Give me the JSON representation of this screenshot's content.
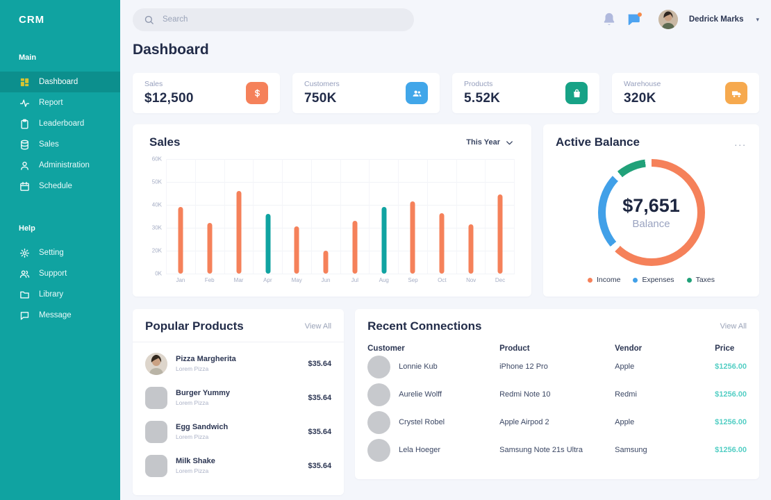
{
  "brand": "CRM",
  "topbar": {
    "search_placeholder": "Search",
    "user_name": "Dedrick Marks",
    "icons": [
      "bell-icon",
      "chat-badge-icon"
    ]
  },
  "sidebar": {
    "sections": [
      {
        "title": "Main",
        "items": [
          {
            "label": "Dashboard",
            "icon": "grid-icon",
            "active": true
          },
          {
            "label": "Report",
            "icon": "activity-icon",
            "active": false
          },
          {
            "label": "Leaderboard",
            "icon": "clipboard-icon",
            "active": false
          },
          {
            "label": "Sales",
            "icon": "database-icon",
            "active": false
          },
          {
            "label": "Administration",
            "icon": "user-icon",
            "active": false
          },
          {
            "label": "Schedule",
            "icon": "calendar-icon",
            "active": false
          }
        ]
      },
      {
        "title": "Help",
        "items": [
          {
            "label": "Setting",
            "icon": "gear-icon",
            "active": false
          },
          {
            "label": "Support",
            "icon": "users-icon",
            "active": false
          },
          {
            "label": "Library",
            "icon": "folder-icon",
            "active": false
          },
          {
            "label": "Message",
            "icon": "chat-icon",
            "active": false
          }
        ]
      }
    ]
  },
  "page_title": "Dashboard",
  "stat_cards": [
    {
      "label": "Sales",
      "value": "$12,500",
      "icon": "dollar-icon",
      "color": "#f5815a"
    },
    {
      "label": "Customers",
      "value": "750K",
      "icon": "people-icon",
      "color": "#41a6e9"
    },
    {
      "label": "Products",
      "value": "5.52K",
      "icon": "bag-icon",
      "color": "#17a286"
    },
    {
      "label": "Warehouse",
      "value": "320K",
      "icon": "truck-icon",
      "color": "#f6a94e"
    }
  ],
  "panels": {
    "sales": {
      "title": "Sales",
      "range_label": "This Year"
    },
    "balance": {
      "title": "Active Balance",
      "menu": "...",
      "center_value": "$7,651",
      "center_label": "Balance"
    },
    "products": {
      "title": "Popular Products",
      "view_all": "View All",
      "items": [
        {
          "name": "Pizza Margherita",
          "subtitle": "Lorem Pizza",
          "price": "$35.64",
          "thumb": "photo"
        },
        {
          "name": "Burger Yummy",
          "subtitle": "Lorem Pizza",
          "price": "$35.64",
          "thumb": "square"
        },
        {
          "name": "Egg Sandwich",
          "subtitle": "Lorem Pizza",
          "price": "$35.64",
          "thumb": "square"
        },
        {
          "name": "Milk Shake",
          "subtitle": "Lorem Pizza",
          "price": "$35.64",
          "thumb": "square"
        }
      ]
    },
    "connections": {
      "title": "Recent Connections",
      "view_all": "View All",
      "columns": [
        "Customer",
        "Product",
        "Vendor",
        "Price"
      ],
      "rows": [
        {
          "customer": "Lonnie Kub",
          "product": "iPhone 12 Pro",
          "vendor": "Apple",
          "price": "$1256.00"
        },
        {
          "customer": "Aurelie Wolff",
          "product": "Redmi Note 10",
          "vendor": "Redmi",
          "price": "$1256.00"
        },
        {
          "customer": "Crystel Robel",
          "product": "Apple Airpod 2",
          "vendor": "Apple",
          "price": "$1256.00"
        },
        {
          "customer": "Lela Hoeger",
          "product": "Samsung Note 21s Ultra",
          "vendor": "Samsung",
          "price": "$1256.00"
        }
      ],
      "price_color": "#53cec4"
    }
  },
  "chart_data": [
    {
      "type": "bar",
      "title": "Sales",
      "range": "This Year",
      "categories": [
        "Jan",
        "Feb",
        "Mar",
        "Apr",
        "May",
        "Jun",
        "Jul",
        "Aug",
        "Sep",
        "Oct",
        "Nov",
        "Dec"
      ],
      "values_k": [
        39,
        32,
        46,
        36,
        30.5,
        20,
        33,
        39,
        41.5,
        36.5,
        31.5,
        44.5
      ],
      "unit": "K",
      "y_ticks": [
        "60K",
        "50K",
        "40K",
        "30K",
        "20K",
        "0K"
      ],
      "y_tick_values": [
        60,
        50,
        40,
        30,
        20,
        0
      ],
      "bar_color": "#f5815a",
      "highlight_color": "#10a3a1",
      "highlight_indices": [
        3,
        7
      ],
      "grid": true,
      "legend_position": "none"
    },
    {
      "type": "donut",
      "title": "Active Balance",
      "center_value": "$7,651",
      "center_label": "Balance",
      "segments": [
        {
          "name": "Income",
          "percent": 62,
          "color": "#f5815a"
        },
        {
          "name": "Expenses",
          "percent": 23,
          "color": "#41a0e8"
        },
        {
          "name": "Taxes",
          "percent": 9,
          "color": "#21a179"
        }
      ],
      "gap_percent": 2,
      "legend_position": "bottom"
    }
  ],
  "colors": {
    "sidebar": "#10a3a1",
    "sidebar_active": "#0c8f8d",
    "active_icon": "#d9c431",
    "background": "#f4f6fb",
    "heading": "#222c49",
    "muted": "#9aa3b8",
    "coral": "#f5815a",
    "blue": "#41a6e9",
    "green": "#17a286",
    "amber": "#f6a94e",
    "mint": "#53cec4"
  }
}
